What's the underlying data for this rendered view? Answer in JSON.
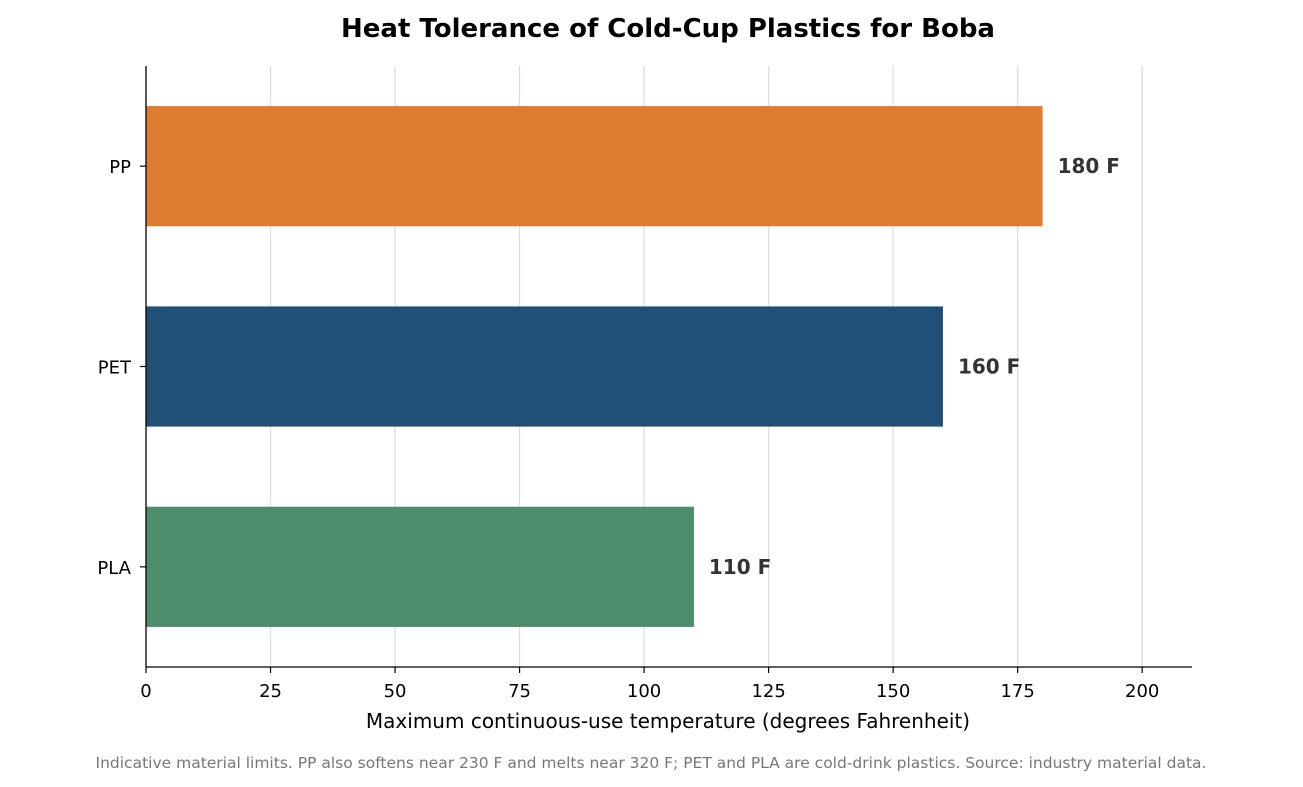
{
  "chart_data": {
    "type": "bar",
    "orientation": "horizontal",
    "title": "Heat Tolerance of Cold-Cup Plastics for Boba",
    "xlabel": "Maximum continuous-use temperature (degrees Fahrenheit)",
    "ylabel": "",
    "xlim": [
      0,
      210
    ],
    "x_ticks": [
      0,
      25,
      50,
      75,
      100,
      125,
      150,
      175,
      200
    ],
    "categories": [
      "PP",
      "PET",
      "PLA"
    ],
    "values": [
      180,
      160,
      110
    ],
    "data_labels": [
      "180 F",
      "160 F",
      "110 F"
    ],
    "colors": [
      "#e07b32",
      "#215077",
      "#4e8c6e"
    ],
    "grid": "vertical",
    "legend": "none",
    "footnote": "Indicative material limits. PP also softens near 230 F and melts near 320 F; PET and PLA are cold-drink plastics. Source: industry material data."
  }
}
